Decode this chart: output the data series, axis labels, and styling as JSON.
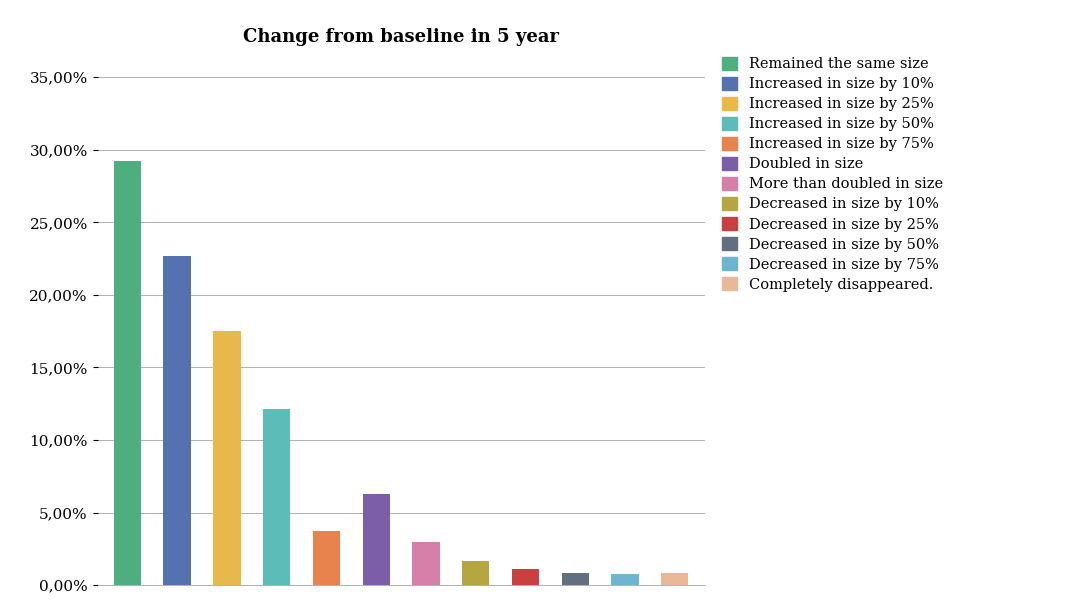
{
  "title": "Change from baseline in 5 year",
  "categories": [
    "Remained the same size",
    "Increased in size by 10%",
    "Increased in size by 25%",
    "Increased in size by 50%",
    "Increased in size by 75%",
    "Doubled in size",
    "More than doubled in size",
    "Decreased in size by 10%",
    "Decreased in size by 25%",
    "Decreased in size by 50%",
    "Decreased in size by 75%",
    "Completely disappeared."
  ],
  "values": [
    0.292,
    0.227,
    0.175,
    0.1215,
    0.037,
    0.0625,
    0.03,
    0.0165,
    0.0115,
    0.0085,
    0.008,
    0.0085
  ],
  "colors": [
    "#4caf7d",
    "#5572b0",
    "#e8b84b",
    "#5bbcb8",
    "#e8834e",
    "#7b5ea7",
    "#d67fa8",
    "#b5a642",
    "#c94040",
    "#607080",
    "#6db5d0",
    "#e8b898"
  ],
  "yticks": [
    0.0,
    0.05,
    0.1,
    0.15,
    0.2,
    0.25,
    0.3,
    0.35
  ],
  "ytick_labels": [
    "0,00%",
    "5,00%",
    "10,00%",
    "15,00%",
    "20,00%",
    "25,00%",
    "30,00%",
    "35,00%"
  ],
  "ylim": [
    0,
    0.365
  ],
  "background_color": "#ffffff",
  "title_fontsize": 13,
  "legend_fontsize": 10.5,
  "bar_width": 0.55
}
